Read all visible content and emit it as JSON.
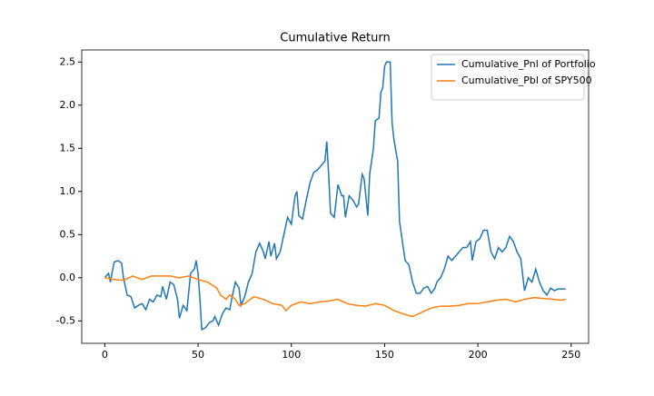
{
  "chart_data": {
    "type": "line",
    "title": "Cumulative Return",
    "series": [
      {
        "name": "Cumulative_Pnl of Portfolio",
        "color": "#1f77b4",
        "x": [
          0,
          2,
          3,
          5,
          7,
          9,
          10,
          12,
          14,
          16,
          18,
          20,
          22,
          24,
          26,
          28,
          30,
          31,
          33,
          35,
          37,
          39,
          40,
          42,
          44,
          46,
          48,
          49,
          50,
          51,
          52,
          54,
          56,
          58,
          59,
          61,
          63,
          65,
          67,
          68,
          70,
          72,
          73,
          75,
          77,
          79,
          81,
          83,
          85,
          86,
          88,
          89,
          91,
          92,
          94,
          96,
          98,
          100,
          102,
          103,
          104,
          106,
          108,
          110,
          112,
          114,
          116,
          118,
          119,
          120,
          121,
          123,
          125,
          127,
          128,
          129,
          131,
          133,
          135,
          136,
          138,
          139,
          141,
          142,
          144,
          145,
          147,
          148,
          149,
          150,
          151,
          153,
          154,
          155,
          157,
          158,
          160,
          161,
          163,
          165,
          167,
          169,
          171,
          173,
          175,
          177,
          178,
          180,
          182,
          184,
          186,
          188,
          190,
          192,
          194,
          196,
          197,
          199,
          201,
          203,
          205,
          207,
          209,
          211,
          213,
          215,
          217,
          219,
          221,
          223,
          225,
          227,
          229,
          231,
          233,
          235,
          237,
          239,
          241,
          243,
          247
        ],
        "values": [
          0,
          0.05,
          -0.05,
          0.18,
          0.2,
          0.17,
          0,
          -0.2,
          -0.22,
          -0.35,
          -0.32,
          -0.3,
          -0.37,
          -0.25,
          -0.28,
          -0.2,
          -0.22,
          -0.1,
          -0.25,
          -0.05,
          -0.08,
          -0.25,
          -0.47,
          -0.32,
          -0.38,
          0.05,
          0.1,
          0.2,
          0.05,
          -0.25,
          -0.6,
          -0.58,
          -0.52,
          -0.5,
          -0.45,
          -0.55,
          -0.42,
          -0.35,
          -0.37,
          -0.25,
          -0.05,
          -0.12,
          -0.32,
          -0.22,
          -0.05,
          0.05,
          0.3,
          0.4,
          0.3,
          0.22,
          0.42,
          0.25,
          0.4,
          0.22,
          0.3,
          0.5,
          0.7,
          0.62,
          0.95,
          1.0,
          0.72,
          0.68,
          0.9,
          1.1,
          1.22,
          1.25,
          1.3,
          1.35,
          1.58,
          1.2,
          0.75,
          0.7,
          1.08,
          0.95,
          0.95,
          0.7,
          0.95,
          0.9,
          0.82,
          0.85,
          1.2,
          1.15,
          0.72,
          1.2,
          1.5,
          1.82,
          1.85,
          2.15,
          2.2,
          2.45,
          2.5,
          2.5,
          1.8,
          1.6,
          1.35,
          0.65,
          0.35,
          0.2,
          0.15,
          -0.05,
          -0.18,
          -0.18,
          -0.12,
          -0.1,
          -0.18,
          -0.12,
          -0.05,
          0,
          0.1,
          0.25,
          0.2,
          0.25,
          0.3,
          0.35,
          0.35,
          0.42,
          0.2,
          0.42,
          0.45,
          0.55,
          0.55,
          0.3,
          0.22,
          0.35,
          0.3,
          0.35,
          0.48,
          0.42,
          0.3,
          0.22,
          -0.15,
          0,
          -0.05,
          0.1,
          -0.05,
          -0.15,
          -0.2,
          -0.12,
          -0.15,
          -0.13,
          -0.13
        ]
      },
      {
        "name": "Cumulative_Pbl of SPY500",
        "color": "#ff7f0e",
        "x": [
          0,
          5,
          10,
          15,
          20,
          25,
          30,
          35,
          40,
          45,
          50,
          55,
          60,
          62,
          65,
          67,
          70,
          72,
          75,
          78,
          80,
          85,
          90,
          95,
          97,
          100,
          105,
          110,
          115,
          120,
          125,
          130,
          135,
          140,
          145,
          150,
          155,
          160,
          165,
          170,
          175,
          180,
          185,
          190,
          195,
          200,
          205,
          210,
          215,
          220,
          225,
          230,
          235,
          240,
          245,
          247
        ],
        "values": [
          0,
          -0.02,
          -0.03,
          0.02,
          -0.02,
          0.02,
          0.02,
          0.02,
          0,
          0.02,
          -0.02,
          -0.05,
          -0.12,
          -0.2,
          -0.25,
          -0.2,
          -0.25,
          -0.32,
          -0.3,
          -0.25,
          -0.22,
          -0.25,
          -0.3,
          -0.32,
          -0.38,
          -0.32,
          -0.28,
          -0.3,
          -0.28,
          -0.27,
          -0.25,
          -0.3,
          -0.32,
          -0.33,
          -0.3,
          -0.32,
          -0.38,
          -0.42,
          -0.45,
          -0.4,
          -0.35,
          -0.33,
          -0.33,
          -0.32,
          -0.3,
          -0.3,
          -0.28,
          -0.26,
          -0.25,
          -0.28,
          -0.25,
          -0.23,
          -0.24,
          -0.25,
          -0.26,
          -0.25
        ]
      }
    ],
    "xlim": [
      -12.35,
      259.35
    ],
    "xticks": [
      0,
      50,
      100,
      150,
      200,
      250
    ],
    "ylim": [
      -0.76,
      2.64
    ],
    "yticks": [
      -0.5,
      {
        "value": 0,
        "label": "0.0"
      },
      0.5,
      {
        "value": 1,
        "label": "1.0"
      },
      1.5,
      {
        "value": 2,
        "label": "2.0"
      },
      2.5
    ],
    "legend": "upper right"
  }
}
